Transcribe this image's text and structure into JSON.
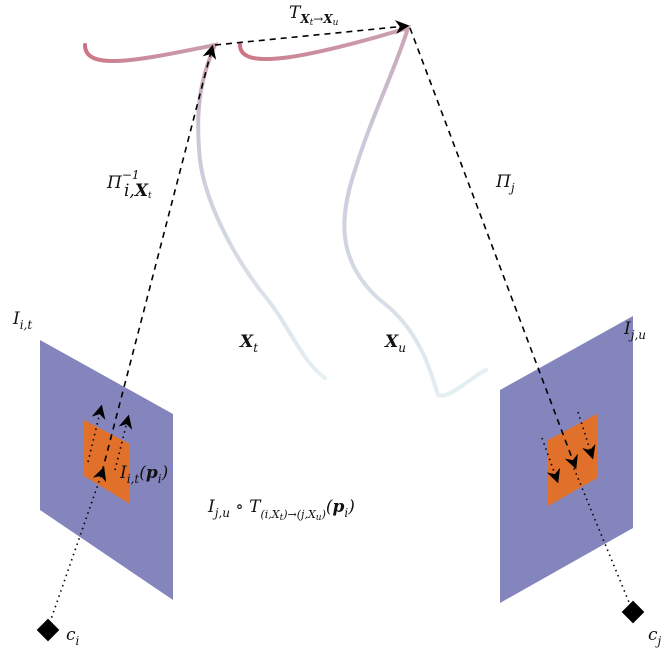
{
  "labels": {
    "transform_top": {
      "main": "T",
      "sub1": "X",
      "sub1sub": "t",
      "arrow": "→",
      "sub2": "X",
      "sub2sub": "u"
    },
    "pi_inverse": {
      "main": "Π",
      "sup": "−1",
      "sub1": "i,",
      "sub2": "X",
      "sub2sub": "t"
    },
    "pi_j": {
      "main": "Π",
      "sub": "j"
    },
    "curve_t": {
      "main": "X",
      "sub": "t"
    },
    "curve_u": {
      "main": "X",
      "sub": "u"
    },
    "image_i": {
      "main": "I",
      "sub": "i,t"
    },
    "image_j": {
      "main": "I",
      "sub": "j,u"
    },
    "patch_i": {
      "main": "I",
      "sub": "i,t",
      "arg_open": "(",
      "arg": "p",
      "arg_sub": "i",
      "arg_close": ")"
    },
    "composition": {
      "main": "I",
      "sub": "j,u",
      "op": " ∘ ",
      "T": "T",
      "tsub": "(i,X",
      "tsub_a": "t",
      "tsub_mid": ")→(j,X",
      "tsub_b": "u",
      "tsub_end": ")",
      "arg_open": "(",
      "arg": "p",
      "arg_sub": "i",
      "arg_close": ")"
    },
    "camera_i": {
      "main": "c",
      "sub": "i"
    },
    "camera_j": {
      "main": "c",
      "sub": "j"
    }
  },
  "colors": {
    "image_plane": "#8585bd",
    "patch": "#e0702a",
    "curve_start": "#cc6e7e",
    "curve_mid": "#c7c9d9",
    "curve_end": "#e4eff3",
    "arrow": "#000000"
  }
}
